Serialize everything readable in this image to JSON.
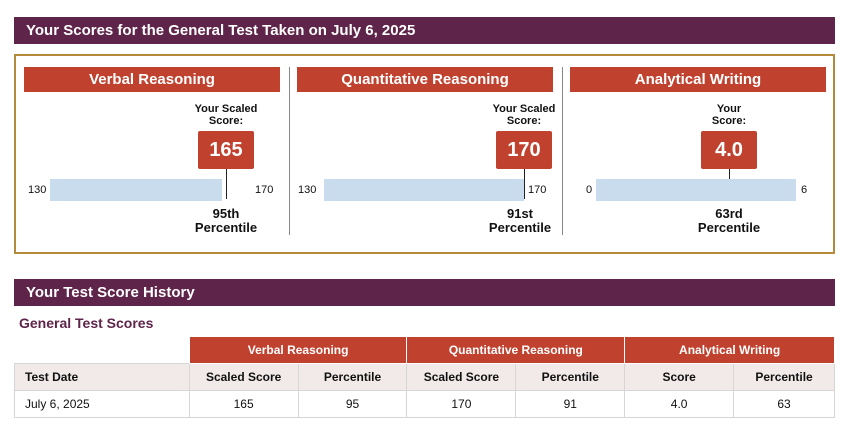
{
  "banner_title": "Your Scores for the General Test Taken on July 6, 2025",
  "sections": [
    {
      "title": "Verbal Reasoning",
      "score_label_line1": "Your Scaled",
      "score_label_line2": "Score:",
      "score": "165",
      "min": "130",
      "max": "170",
      "percentile_rank": "95th",
      "percentile_word": "Percentile"
    },
    {
      "title": "Quantitative Reasoning",
      "score_label_line1": "Your Scaled",
      "score_label_line2": "Score:",
      "score": "170",
      "min": "130",
      "max": "170",
      "percentile_rank": "91st",
      "percentile_word": "Percentile"
    },
    {
      "title": "Analytical Writing",
      "score_label_line1": "Your",
      "score_label_line2": "Score:",
      "score": "4.0",
      "min": "0",
      "max": "6",
      "percentile_rank": "63rd",
      "percentile_word": "Percentile"
    }
  ],
  "history": {
    "title": "Your Test Score History",
    "subtitle": "General Test Scores",
    "groups": [
      "Verbal Reasoning",
      "Quantitative Reasoning",
      "Analytical Writing"
    ],
    "columns": [
      "Test Date",
      "Scaled Score",
      "Percentile",
      "Scaled Score",
      "Percentile",
      "Score",
      "Percentile"
    ],
    "rows": [
      [
        "July 6, 2025",
        "165",
        "95",
        "170",
        "91",
        "4.0",
        "63"
      ]
    ]
  },
  "colors": {
    "banner": "#5f2449",
    "section_header": "#c1412f",
    "bar": "#c9dcee",
    "frame": "#b48a3c"
  }
}
